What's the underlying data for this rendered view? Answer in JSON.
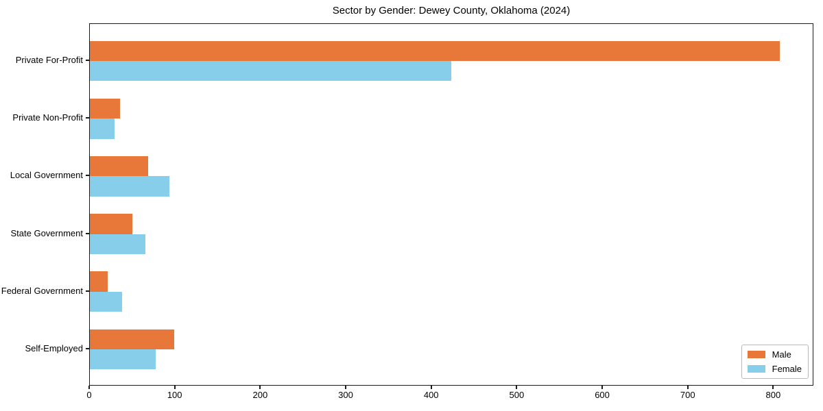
{
  "chart_data": {
    "type": "bar",
    "orientation": "horizontal",
    "title": "Sector by Gender: Dewey County, Oklahoma (2024)",
    "categories": [
      "Private For-Profit",
      "Private Non-Profit",
      "Local Government",
      "State Government",
      "Federal Government",
      "Self-Employed"
    ],
    "series": [
      {
        "name": "Male",
        "color": "#E8773A",
        "values": [
          807,
          35,
          68,
          50,
          21,
          99
        ]
      },
      {
        "name": "Female",
        "color": "#87CEEB",
        "values": [
          423,
          29,
          93,
          65,
          38,
          77
        ]
      }
    ],
    "xlabel": "",
    "ylabel": "",
    "xlim": [
      0,
      847
    ],
    "x_ticks": [
      0,
      100,
      200,
      300,
      400,
      500,
      600,
      700,
      800
    ],
    "grid": false,
    "legend_position": "lower right"
  },
  "colors": {
    "male": "#E8773A",
    "female": "#87CEEB",
    "spine": "#1a1a1a",
    "background": "#ffffff"
  }
}
